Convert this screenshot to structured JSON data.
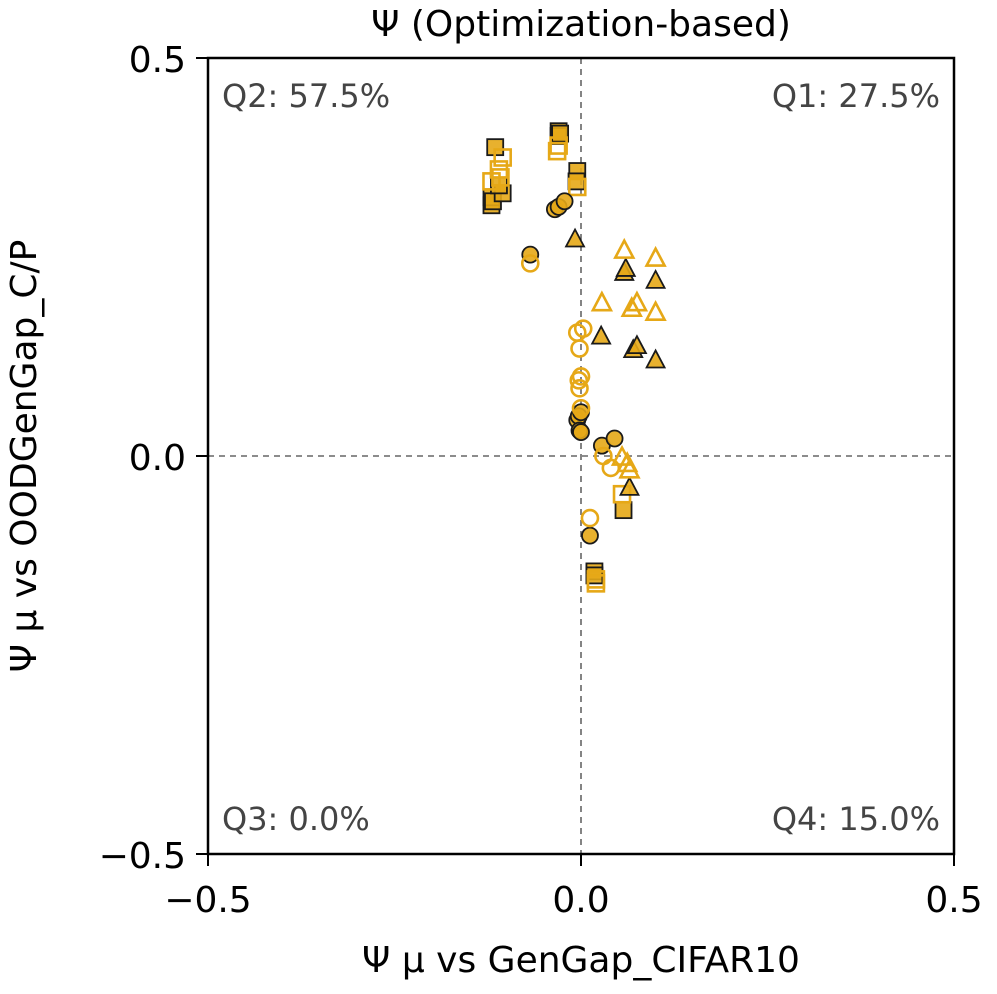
{
  "chart_data": {
    "type": "scatter",
    "title": "Ψ (Optimization-based)",
    "xlabel": "Ψ μ vs GenGap_CIFAR10",
    "ylabel": "Ψ μ vs OODGenGap_C/P",
    "xlim": [
      -0.5,
      0.5
    ],
    "ylim": [
      -0.5,
      0.5
    ],
    "xticks": [
      -0.5,
      0.0,
      0.5
    ],
    "yticks": [
      -0.5,
      0.0,
      0.5
    ],
    "xtick_labels": [
      "−0.5",
      "0.0",
      "0.5"
    ],
    "ytick_labels": [
      "−0.5",
      "0.0",
      "0.5"
    ],
    "reference_lines": {
      "x": 0.0,
      "y": 0.0
    },
    "quadrant_labels": {
      "q1": "Q1: 27.5%",
      "q2": "Q2: 57.5%",
      "q3": "Q3: 0.0%",
      "q4": "Q4: 15.0%"
    },
    "colors": {
      "series": "#E6A817",
      "edge": "#1a1a1a"
    },
    "series": [
      {
        "name": "square-filled",
        "marker": "square",
        "fill": true,
        "points": [
          [
            -0.115,
            0.388
          ],
          [
            -0.12,
            0.315
          ],
          [
            -0.12,
            0.325
          ],
          [
            -0.118,
            0.32
          ],
          [
            -0.105,
            0.33
          ],
          [
            -0.11,
            0.34
          ],
          [
            -0.03,
            0.408
          ],
          [
            -0.03,
            0.402
          ],
          [
            -0.028,
            0.405
          ],
          [
            -0.005,
            0.358
          ],
          [
            -0.006,
            0.345
          ],
          [
            0.057,
            -0.068
          ],
          [
            0.018,
            -0.145
          ],
          [
            0.018,
            -0.15
          ]
        ]
      },
      {
        "name": "square-open",
        "marker": "square",
        "fill": false,
        "points": [
          [
            -0.12,
            0.345
          ],
          [
            -0.11,
            0.36
          ],
          [
            -0.105,
            0.375
          ],
          [
            -0.108,
            0.35
          ],
          [
            -0.03,
            0.39
          ],
          [
            -0.032,
            0.383
          ],
          [
            -0.005,
            0.338
          ],
          [
            0.055,
            -0.048
          ],
          [
            0.02,
            -0.155
          ],
          [
            0.02,
            -0.16
          ]
        ]
      },
      {
        "name": "circle-filled",
        "marker": "circle",
        "fill": true,
        "points": [
          [
            -0.035,
            0.31
          ],
          [
            -0.03,
            0.313
          ],
          [
            -0.022,
            0.32
          ],
          [
            -0.068,
            0.253
          ],
          [
            -0.005,
            0.045
          ],
          [
            -0.003,
            0.05
          ],
          [
            0.0,
            0.055
          ],
          [
            -0.002,
            0.032
          ],
          [
            0.0,
            0.03
          ],
          [
            0.028,
            0.013
          ],
          [
            0.045,
            0.022
          ],
          [
            0.012,
            -0.1
          ]
        ]
      },
      {
        "name": "circle-open",
        "marker": "circle",
        "fill": false,
        "points": [
          [
            -0.068,
            0.242
          ],
          [
            -0.005,
            0.155
          ],
          [
            0.003,
            0.16
          ],
          [
            -0.002,
            0.135
          ],
          [
            -0.003,
            0.095
          ],
          [
            0.0,
            0.1
          ],
          [
            -0.002,
            0.085
          ],
          [
            0.0,
            0.06
          ],
          [
            0.03,
            0.0
          ],
          [
            0.04,
            -0.015
          ],
          [
            0.012,
            -0.078
          ]
        ]
      },
      {
        "name": "triangle-filled",
        "marker": "triangle",
        "fill": true,
        "points": [
          [
            -0.008,
            0.272
          ],
          [
            0.058,
            0.23
          ],
          [
            0.06,
            0.235
          ],
          [
            0.1,
            0.22
          ],
          [
            0.027,
            0.15
          ],
          [
            0.07,
            0.133
          ],
          [
            0.075,
            0.138
          ],
          [
            0.1,
            0.12
          ],
          [
            0.065,
            -0.04
          ]
        ]
      },
      {
        "name": "triangle-open",
        "marker": "triangle",
        "fill": false,
        "points": [
          [
            0.058,
            0.258
          ],
          [
            0.1,
            0.248
          ],
          [
            0.028,
            0.192
          ],
          [
            0.068,
            0.185
          ],
          [
            0.075,
            0.192
          ],
          [
            0.1,
            0.18
          ],
          [
            0.055,
            -0.002
          ],
          [
            0.062,
            -0.01
          ],
          [
            0.065,
            -0.018
          ]
        ]
      }
    ]
  }
}
